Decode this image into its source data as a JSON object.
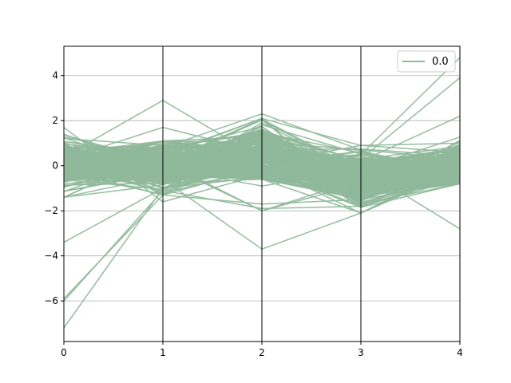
{
  "chart_data": {
    "type": "line",
    "subtype": "parallel-coordinates",
    "title": "",
    "xlabel": "",
    "ylabel": "",
    "x": [
      0,
      1,
      2,
      3,
      4
    ],
    "x_ticks": [
      "0",
      "1",
      "2",
      "3",
      "4"
    ],
    "y_ticks": [
      "−6",
      "−4",
      "−2",
      "0",
      "2",
      "4"
    ],
    "ylim": [
      -7.8,
      5.3
    ],
    "xlim": [
      0,
      4
    ],
    "grid": "horizontal",
    "axis_verticals": true,
    "legend": {
      "placement": "top-right",
      "entries": [
        "0.0"
      ]
    },
    "line_color": "#8fb89a",
    "outlier_series": [
      [
        -7.2,
        -1.0,
        -0.5,
        -1.2,
        -0.5
      ],
      [
        -6.0,
        -1.1,
        -1.9,
        -1.8,
        -0.6
      ],
      [
        -5.9,
        -1.3,
        -1.7,
        -1.5,
        -0.7
      ],
      [
        -3.4,
        -1.0,
        -0.3,
        -0.7,
        -0.4
      ],
      [
        1.7,
        -1.6,
        -0.4,
        0.1,
        -0.6
      ],
      [
        0.4,
        2.9,
        0.3,
        0.3,
        0.2
      ],
      [
        0.3,
        1.7,
        0.6,
        0.0,
        0.0
      ],
      [
        -0.4,
        -0.6,
        -3.7,
        -2.1,
        -0.2
      ],
      [
        0.1,
        0.2,
        -2.0,
        -0.8,
        -0.3
      ],
      [
        0.2,
        0.1,
        -2.0,
        -0.6,
        0.1
      ],
      [
        -0.2,
        -0.1,
        -0.9,
        -0.2,
        0.0
      ],
      [
        0.5,
        0.8,
        2.3,
        0.7,
        0.3
      ],
      [
        0.3,
        0.5,
        2.1,
        0.9,
        0.6
      ],
      [
        0.1,
        -0.3,
        0.2,
        0.5,
        4.8
      ],
      [
        0.2,
        -0.1,
        0.3,
        0.3,
        3.9
      ],
      [
        0.0,
        0.0,
        0.1,
        -0.1,
        -2.8
      ],
      [
        -0.5,
        0.1,
        0.0,
        -2.1,
        0.0
      ],
      [
        0.3,
        0.2,
        0.1,
        0.9,
        1.0
      ],
      [
        0.0,
        0.2,
        0.0,
        0.2,
        2.2
      ]
    ],
    "band_series_count": 240,
    "band_std": [
      0.55,
      0.55,
      0.65,
      0.55,
      0.55
    ]
  }
}
